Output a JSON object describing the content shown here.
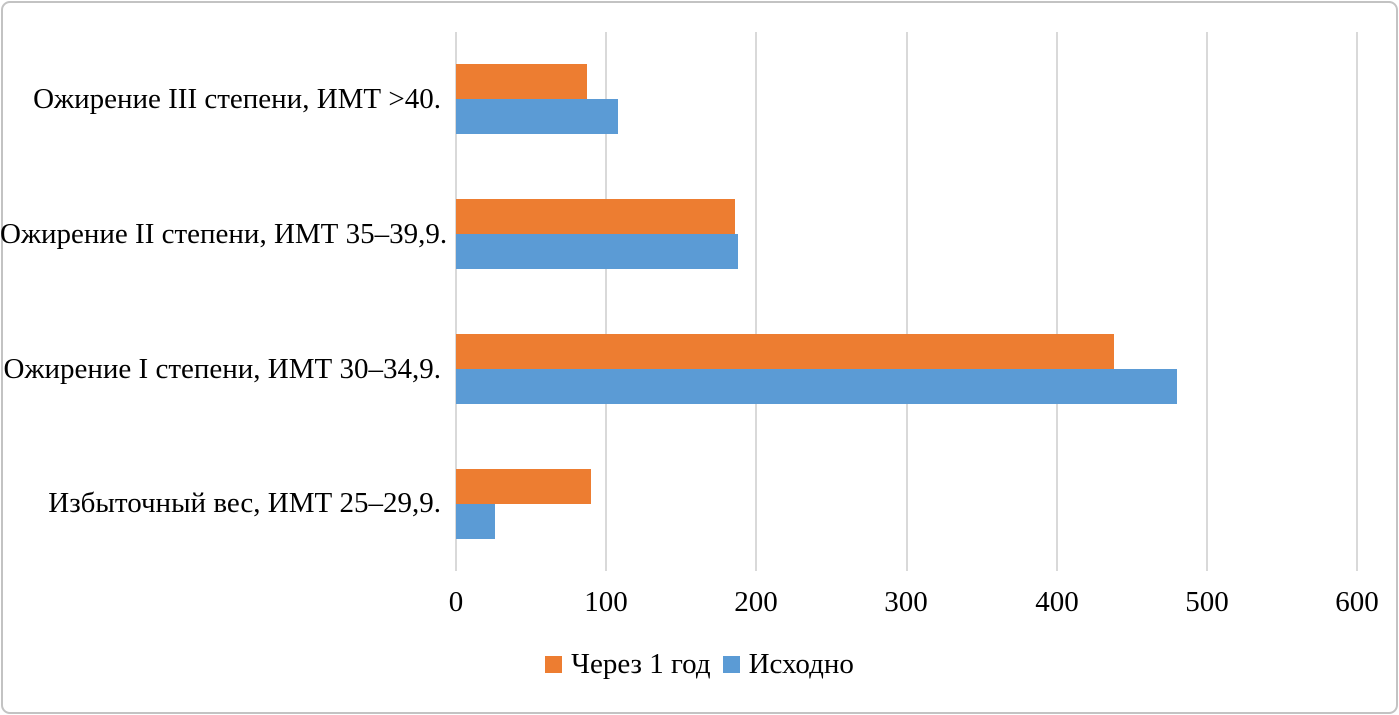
{
  "chart_data": {
    "type": "bar",
    "orientation": "horizontal",
    "title": "",
    "categories": [
      "Ожирение III степени, ИМТ >40.",
      "Ожирение II степени, ИМТ 35–39,9.",
      "Ожирение I степени, ИМТ 30–34,9.",
      "Избыточный вес, ИМТ 25–29,9."
    ],
    "series": [
      {
        "name": "Через 1 год",
        "color": "#ED7D31",
        "values": [
          87,
          186,
          438,
          90
        ]
      },
      {
        "name": "Исходно",
        "color": "#5B9BD5",
        "values": [
          108,
          188,
          480,
          26
        ]
      }
    ],
    "xlim": [
      0,
      600
    ],
    "xticks": [
      "0",
      "100",
      "200",
      "300",
      "400",
      "500",
      "600"
    ],
    "grid": "vertical-gridlines-only",
    "legend_position": "bottom-center",
    "category_order": "top-to-bottom",
    "bar_group_order": [
      "Через 1 год",
      "Исходно"
    ]
  },
  "colors": {
    "background": "#FFFFFF",
    "frame_border": "#C3C3C3",
    "gridline": "#D9D9D9",
    "text": "#000000"
  }
}
